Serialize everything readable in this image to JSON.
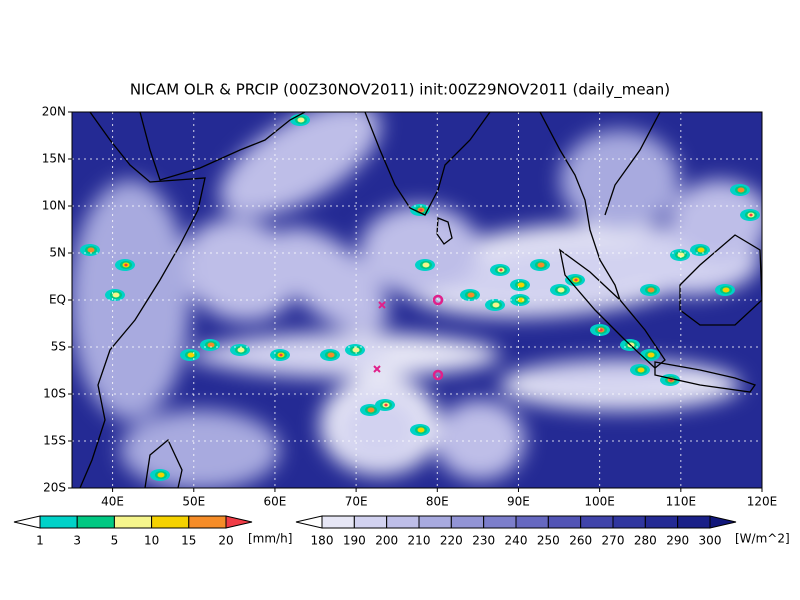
{
  "title": "NICAM OLR & PRCIP (00Z30NOV2011) init:00Z29NOV2011 (daily_mean)",
  "map": {
    "lat_ticks": [
      "20N",
      "15N",
      "10N",
      "5N",
      "EQ",
      "5S",
      "10S",
      "15S",
      "20S"
    ],
    "lon_ticks": [
      "40E",
      "50E",
      "60E",
      "70E",
      "80E",
      "90E",
      "100E",
      "110E",
      "120E"
    ]
  },
  "precip_legend": {
    "levels": [
      1,
      3,
      5,
      10,
      15,
      20
    ],
    "unit": "[mm/h]",
    "colors": [
      "#ffffff",
      "#00d2c8",
      "#00c882",
      "#f5f58c",
      "#f5d200",
      "#f58c28",
      "#f03c46"
    ]
  },
  "olr_legend": {
    "levels": [
      180,
      190,
      200,
      210,
      220,
      230,
      240,
      250,
      260,
      270,
      280,
      290,
      300
    ],
    "unit": "[W/m^2]",
    "colors": [
      "#ffffff",
      "#e6e6f5",
      "#d2d2f0",
      "#bebee8",
      "#a8aadf",
      "#9294d5",
      "#7c7ecb",
      "#6668c0",
      "#5254b5",
      "#4044aa",
      "#30369f",
      "#242a94",
      "#1a2088",
      "#10167a"
    ]
  }
}
